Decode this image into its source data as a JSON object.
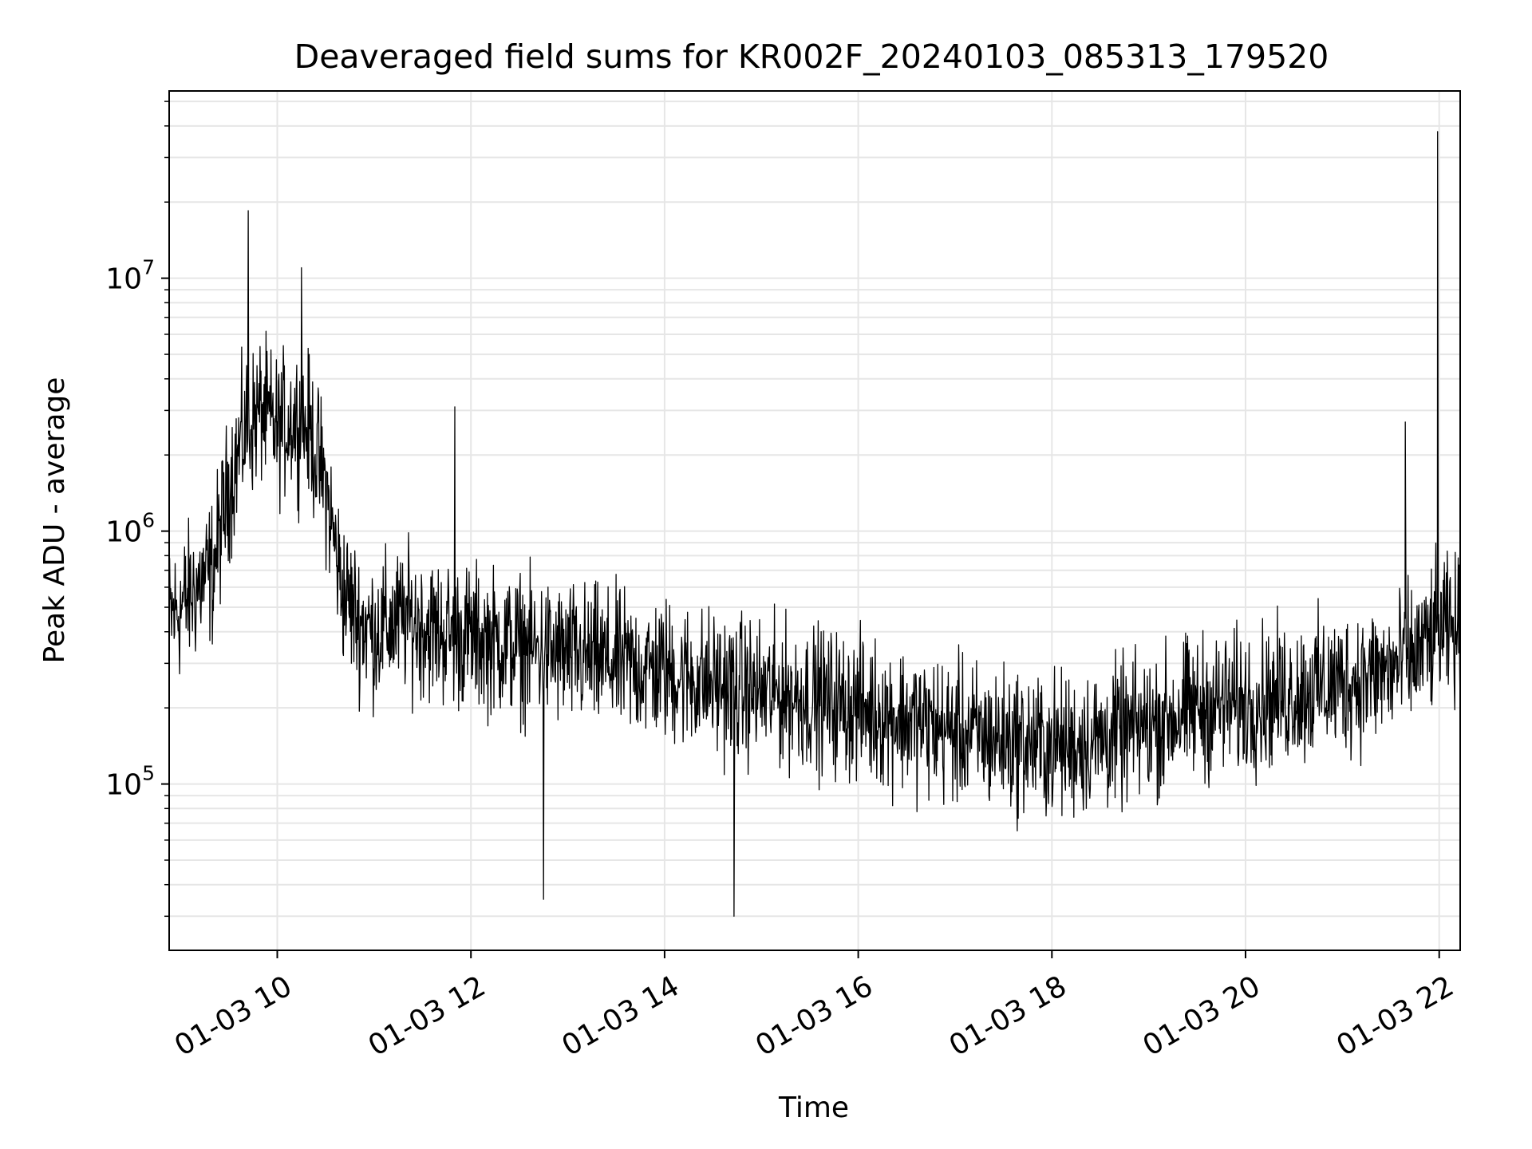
{
  "chart_data": {
    "type": "line",
    "title": "Deaveraged field sums for KR002F_20240103_085313_179520",
    "xlabel": "Time",
    "ylabel": "Peak ADU - average",
    "yscale": "log",
    "grid": true,
    "line_color": "#000000",
    "grid_color": "#e6e6e6",
    "xlim": [
      "01-03 08:53",
      "01-03 22:13"
    ],
    "ylim": [
      22000,
      55000000
    ],
    "x_ticks": [
      "01-03 10",
      "01-03 12",
      "01-03 14",
      "01-03 16",
      "01-03 18",
      "01-03 20",
      "01-03 22"
    ],
    "y_ticks": [
      {
        "base": "10",
        "exp": "5",
        "value": 100000
      },
      {
        "base": "10",
        "exp": "6",
        "value": 1000000
      },
      {
        "base": "10",
        "exp": "7",
        "value": 10000000
      }
    ],
    "series": [
      {
        "x": [
          "01-03 08:53",
          "01-03 09:00",
          "01-03 09:10",
          "01-03 09:20",
          "01-03 09:30",
          "01-03 09:40",
          "01-03 09:50",
          "01-03 10:00",
          "01-03 10:10",
          "01-03 10:20",
          "01-03 10:30",
          "01-03 10:40",
          "01-03 10:50",
          "01-03 11:00",
          "01-03 11:20",
          "01-03 11:40",
          "01-03 12:00",
          "01-03 12:30",
          "01-03 13:00",
          "01-03 13:30",
          "01-03 14:00",
          "01-03 14:30",
          "01-03 15:00",
          "01-03 15:30",
          "01-03 16:00",
          "01-03 16:30",
          "01-03 17:00",
          "01-03 17:30",
          "01-03 18:00",
          "01-03 18:30",
          "01-03 19:00",
          "01-03 19:30",
          "01-03 20:00",
          "01-03 20:30",
          "01-03 21:00",
          "01-03 21:30",
          "01-03 21:45",
          "01-03 22:00",
          "01-03 22:13"
        ],
        "y": [
          450000,
          500000,
          600000,
          700000,
          1500000,
          2500000,
          3000000,
          2500000,
          2800000,
          2500000,
          1500000,
          600000,
          450000,
          400000,
          450000,
          400000,
          380000,
          350000,
          320000,
          300000,
          280000,
          250000,
          230000,
          220000,
          200000,
          180000,
          160000,
          150000,
          140000,
          150000,
          170000,
          200000,
          210000,
          230000,
          250000,
          280000,
          320000,
          400000,
          400000
        ],
        "spikes": [
          {
            "x": "01-03 09:42",
            "y": 18500000
          },
          {
            "x": "01-03 10:15",
            "y": 11000000
          },
          {
            "x": "01-03 11:50",
            "y": 3100000
          },
          {
            "x": "01-03 12:45",
            "y": 35000
          },
          {
            "x": "01-03 14:43",
            "y": 30000
          },
          {
            "x": "01-03 21:39",
            "y": 2700000
          },
          {
            "x": "01-03 21:59",
            "y": 38000000
          }
        ]
      }
    ]
  }
}
